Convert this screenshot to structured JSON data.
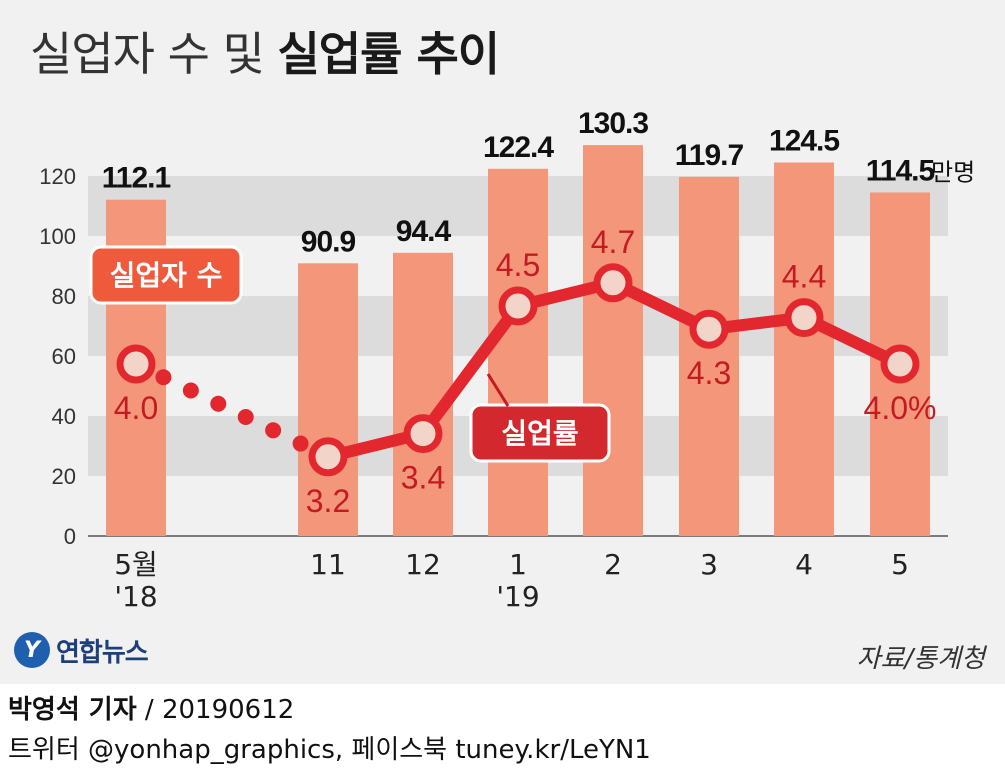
{
  "header": {
    "title_light": "실업자 수 및",
    "title_bold": "실업률 추이"
  },
  "chart_data": {
    "type": "bar",
    "categories": [
      "5월 '18",
      "11",
      "12",
      "1 '19",
      "2",
      "3",
      "4",
      "5"
    ],
    "category_labels": [
      [
        "5월",
        "'18"
      ],
      [
        "11"
      ],
      [
        "12"
      ],
      [
        "1",
        "'19"
      ],
      [
        "2"
      ],
      [
        "3"
      ],
      [
        "4"
      ],
      [
        "5"
      ]
    ],
    "yticks": [
      0,
      20,
      40,
      60,
      80,
      100,
      120
    ],
    "ylim": [
      0,
      130
    ],
    "grid": "alternating bands",
    "series": [
      {
        "name": "실업자 수",
        "type": "bar",
        "unit": "만명",
        "values": [
          112.1,
          90.9,
          94.4,
          122.4,
          130.3,
          119.7,
          124.5,
          114.5
        ],
        "labels": [
          "112.1",
          "90.9",
          "94.4",
          "122.4",
          "130.3",
          "119.7",
          "124.5",
          "114.5"
        ],
        "color": "#f4967a"
      },
      {
        "name": "실업률",
        "type": "line",
        "unit": "%",
        "values": [
          4.0,
          3.2,
          3.4,
          4.5,
          4.7,
          4.3,
          4.4,
          4.0
        ],
        "labels": [
          "4.0",
          "3.2",
          "3.4",
          "4.5",
          "4.7",
          "4.3",
          "4.4",
          "4.0%"
        ],
        "color": "#e3272e",
        "gap_after_index": 0
      }
    ],
    "bar_unit_label": "만명"
  },
  "source": "자료/통계청",
  "logo": {
    "mark": "Y",
    "name": "연합뉴스"
  },
  "footer": {
    "reporter": "박영석 기자",
    "date": "/  20190612",
    "contacts": "트위터 @yonhap_graphics, 페이스북 tuney.kr/LeYN1"
  }
}
